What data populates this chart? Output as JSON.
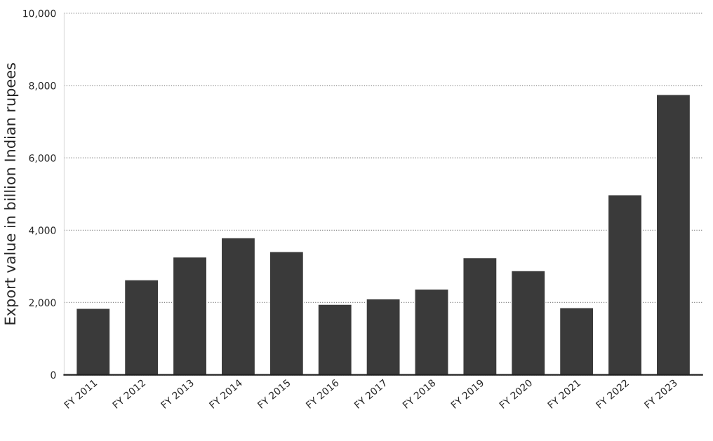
{
  "chart_data": {
    "type": "bar",
    "ylabel": "Export value in billion Indian rupees",
    "categories": [
      "FY 2011",
      "FY 2012",
      "FY 2013",
      "FY 2014",
      "FY 2015",
      "FY 2016",
      "FY 2017",
      "FY 2018",
      "FY 2019",
      "FY 2020",
      "FY 2021",
      "FY 2022",
      "FY 2023"
    ],
    "values": [
      1840,
      2630,
      3260,
      3790,
      3410,
      1950,
      2100,
      2370,
      3240,
      2880,
      1860,
      4980,
      7750
    ],
    "color": "#3a3a3a",
    "ylim": [
      0,
      10000
    ],
    "yticks": [
      0,
      {
        "value": 2000,
        "label": "2,000"
      },
      {
        "value": 4000,
        "label": "4,000"
      },
      {
        "value": 6000,
        "label": "6,000"
      },
      {
        "value": 8000,
        "label": "8,000"
      },
      {
        "value": 10000,
        "label": "10,000"
      }
    ],
    "grid": "y",
    "legend": false
  }
}
